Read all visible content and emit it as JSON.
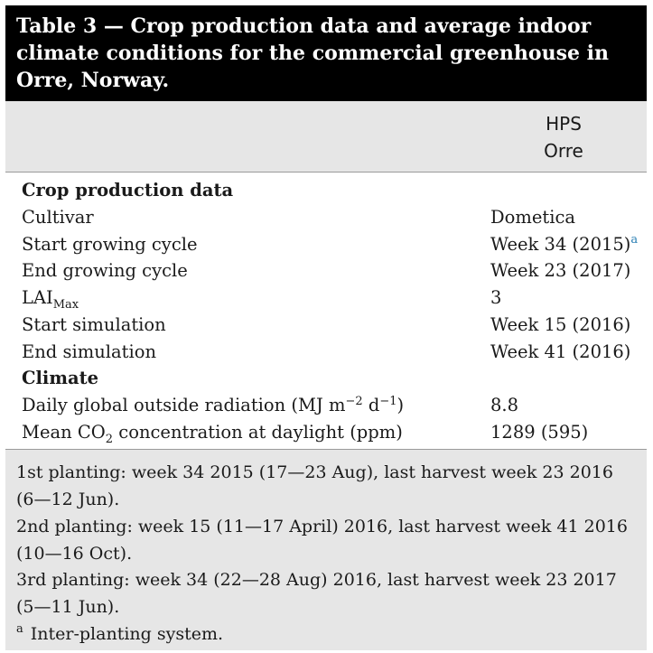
{
  "title": {
    "line1": "Table 3 — Crop production data and average indoor",
    "line2": "climate conditions for the commercial greenhouse in",
    "line3": "Orre, Norway."
  },
  "column_header": {
    "line1": "HPS",
    "line2": "Orre"
  },
  "sections": {
    "crop": "Crop production data",
    "climate": "Climate"
  },
  "rows": {
    "cultivar": {
      "label": "Cultivar",
      "value": "Dometica"
    },
    "start_cycle": {
      "label": "Start growing cycle",
      "value": "Week 34 (2015)",
      "note": "a"
    },
    "end_cycle": {
      "label": "End growing cycle",
      "value": "Week 23 (2017)"
    },
    "lai": {
      "label": "LAI",
      "sub": "Max",
      "value": "3"
    },
    "start_sim": {
      "label": "Start simulation",
      "value": "Week 15 (2016)"
    },
    "end_sim": {
      "label": "End simulation",
      "value": "Week 41 (2016)"
    },
    "radiation": {
      "label_pre": "Daily global outside radiation (MJ m",
      "exp1": "−2",
      "label_mid": " d",
      "exp2": "−1",
      "label_post": ")",
      "value": "8.8"
    },
    "co2": {
      "label_pre": "Mean CO",
      "sub": "2",
      "label_post": " concentration at daylight (ppm)",
      "value": "1289 (595)"
    }
  },
  "footnotes": {
    "l1": "1st planting: week 34 2015 (17—23 Aug), last harvest week 23 2016",
    "l2": "(6—12 Jun).",
    "l3": "2nd planting: week 15 (11—17 April) 2016, last harvest week 41 2016",
    "l4": "(10—16 Oct).",
    "l5": "3rd planting: week 34 (22—28 Aug) 2016, last harvest week 23 2017",
    "l6": "(5—11 Jun).",
    "note_marker": "a",
    "note_text": "Inter-planting system."
  }
}
